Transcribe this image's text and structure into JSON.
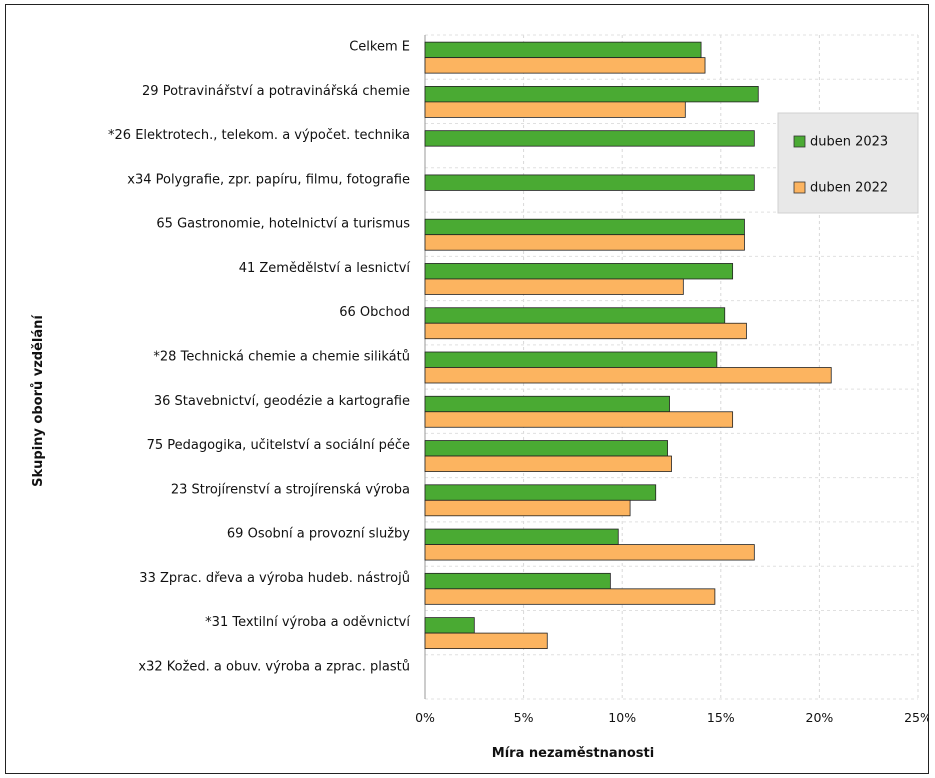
{
  "chart_data": {
    "type": "bar",
    "orientation": "horizontal",
    "xlabel": "Míra nezaměstnanosti",
    "ylabel": "Skupiny oborů vzdělání",
    "xlim": [
      0,
      25
    ],
    "xticks": [
      "0%",
      "5%",
      "10%",
      "15%",
      "20%",
      "25%"
    ],
    "grid": true,
    "legend_position": "right",
    "categories": [
      "Celkem E",
      "29 Potravinářství a potravinářská chemie",
      "*26 Elektrotech., telekom. a výpočet. technika",
      "x34 Polygrafie, zpr. papíru, filmu, fotografie",
      "65 Gastronomie, hotelnictví a turismus",
      "41 Zemědělství a lesnictví",
      "66 Obchod",
      "*28 Technická chemie a chemie silikátů",
      "36 Stavebnictví, geodézie a kartografie",
      "75 Pedagogika, učitelství a sociální péče",
      "23 Strojírenství a strojírenská výroba",
      "69 Osobní a provozní služby",
      "33 Zprac. dřeva a výroba hudeb. nástrojů",
      "*31 Textilní výroba a oděvnictví",
      "x32 Kožed. a obuv. výroba a zprac. plastů"
    ],
    "series": [
      {
        "name": "duben  2023",
        "color": "#4aaa33",
        "values": [
          14.0,
          16.9,
          16.7,
          16.7,
          16.2,
          15.6,
          15.2,
          14.8,
          12.4,
          12.3,
          11.7,
          9.8,
          9.4,
          2.5,
          0
        ]
      },
      {
        "name": "duben  2022",
        "color": "#fcb460",
        "values": [
          14.2,
          13.2,
          0,
          0,
          16.2,
          13.1,
          16.3,
          20.6,
          15.6,
          12.5,
          10.4,
          16.7,
          14.7,
          6.2,
          0
        ]
      }
    ]
  }
}
